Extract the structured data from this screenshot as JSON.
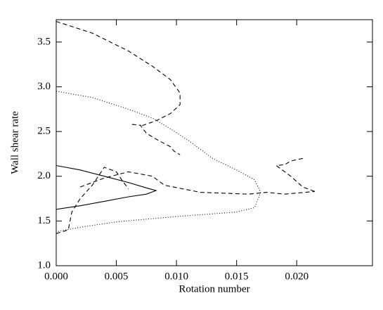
{
  "chart_data": {
    "type": "line",
    "xlabel": "Rotation number",
    "ylabel": "Wall shear rate",
    "xlim": [
      0,
      0.0263
    ],
    "ylim": [
      1.0,
      3.75
    ],
    "xticks": [
      {
        "value": 0,
        "label": "0.000"
      },
      {
        "value": 0.005,
        "label": "0.005"
      },
      {
        "value": 0.01,
        "label": "0.010"
      },
      {
        "value": 0.015,
        "label": "0.015"
      },
      {
        "value": 0.02,
        "label": "0.020"
      }
    ],
    "yticks": [
      {
        "value": 1.0,
        "label": "1.0"
      },
      {
        "value": 1.5,
        "label": "1.5"
      },
      {
        "value": 2.0,
        "label": "2.0"
      },
      {
        "value": 2.5,
        "label": "2.5"
      },
      {
        "value": 3.0,
        "label": "3.0"
      },
      {
        "value": 3.5,
        "label": "3.5"
      }
    ],
    "series": [
      {
        "style": "solid",
        "color": "#000000",
        "x": [
          0,
          0.002,
          0.004,
          0.006,
          0.0075,
          0.0083,
          0.0075,
          0.006,
          0.004,
          0.002,
          0
        ],
        "y": [
          2.12,
          2.07,
          2.0,
          1.93,
          1.87,
          1.84,
          1.8,
          1.77,
          1.72,
          1.67,
          1.63
        ]
      },
      {
        "style": "dotted",
        "color": "#000000",
        "x": [
          0,
          0.003,
          0.006,
          0.008,
          0.0095,
          0.011,
          0.013,
          0.015,
          0.0165,
          0.017,
          0.0165,
          0.015,
          0.01,
          0.005,
          0.002,
          0
        ],
        "y": [
          2.95,
          2.88,
          2.75,
          2.65,
          2.53,
          2.4,
          2.2,
          2.07,
          1.96,
          1.82,
          1.65,
          1.6,
          1.55,
          1.49,
          1.43,
          1.38
        ]
      },
      {
        "style": "dashed",
        "color": "#000000",
        "x": [
          0,
          0.003,
          0.006,
          0.008,
          0.0095,
          0.0103,
          0.0103,
          0.0095,
          0.0083,
          0.007,
          null,
          0.0063,
          0.007,
          0.0075,
          0.0085,
          0.0095,
          0.0098,
          0.0103,
          null,
          0,
          0.001,
          0.0013,
          0.002,
          0.003,
          0.004,
          0.005,
          0.0055,
          0.006,
          null,
          0.002,
          0.004,
          0.006,
          0.008,
          0.009,
          0.012,
          0.016,
          0.0175,
          0.019,
          0.0215,
          null,
          0.0205,
          0.0195,
          0.019,
          0.0183,
          0.0185,
          0.0195,
          0.0205,
          0.0215
        ],
        "y": [
          3.73,
          3.6,
          3.4,
          3.23,
          3.08,
          2.93,
          2.8,
          2.7,
          2.62,
          2.56,
          null,
          2.58,
          2.57,
          2.48,
          2.4,
          2.33,
          2.28,
          2.24,
          null,
          1.36,
          1.4,
          1.6,
          1.75,
          1.9,
          2.1,
          2.05,
          1.95,
          1.86,
          null,
          1.88,
          1.98,
          2.05,
          2.0,
          1.9,
          1.82,
          1.8,
          1.82,
          1.8,
          1.83,
          null,
          2.2,
          2.17,
          2.13,
          2.12,
          2.1,
          2.0,
          1.88,
          1.83
        ]
      }
    ]
  }
}
